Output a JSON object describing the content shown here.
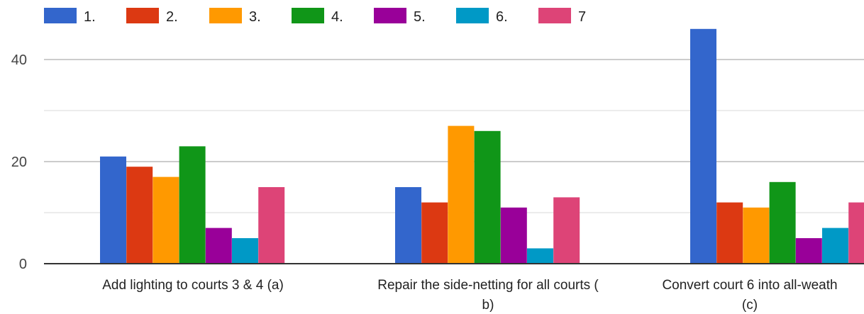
{
  "chart_data": {
    "type": "bar",
    "categories": [
      [
        "Add lighting to courts 3 & 4 (a)"
      ],
      [
        "Repair the side-netting for all courts (",
        "b)"
      ],
      [
        "Convert court 6 into all-weath",
        "(c)"
      ]
    ],
    "series": [
      {
        "name": "1.",
        "color": "#3366cc",
        "values": [
          21,
          15,
          46
        ]
      },
      {
        "name": "2.",
        "color": "#dc3912",
        "values": [
          19,
          12,
          12
        ]
      },
      {
        "name": "3.",
        "color": "#ff9900",
        "values": [
          17,
          27,
          11
        ]
      },
      {
        "name": "4.",
        "color": "#109618",
        "values": [
          23,
          26,
          16
        ]
      },
      {
        "name": "5.",
        "color": "#990099",
        "values": [
          7,
          11,
          5
        ]
      },
      {
        "name": "6.",
        "color": "#0099c6",
        "values": [
          5,
          3,
          7
        ]
      },
      {
        "name": "7",
        "color": "#dd4477",
        "values": [
          15,
          13,
          12
        ]
      }
    ],
    "yticks": [
      0,
      20,
      40
    ],
    "ylim": [
      0,
      50
    ],
    "grid": true,
    "legend_position": "top"
  }
}
